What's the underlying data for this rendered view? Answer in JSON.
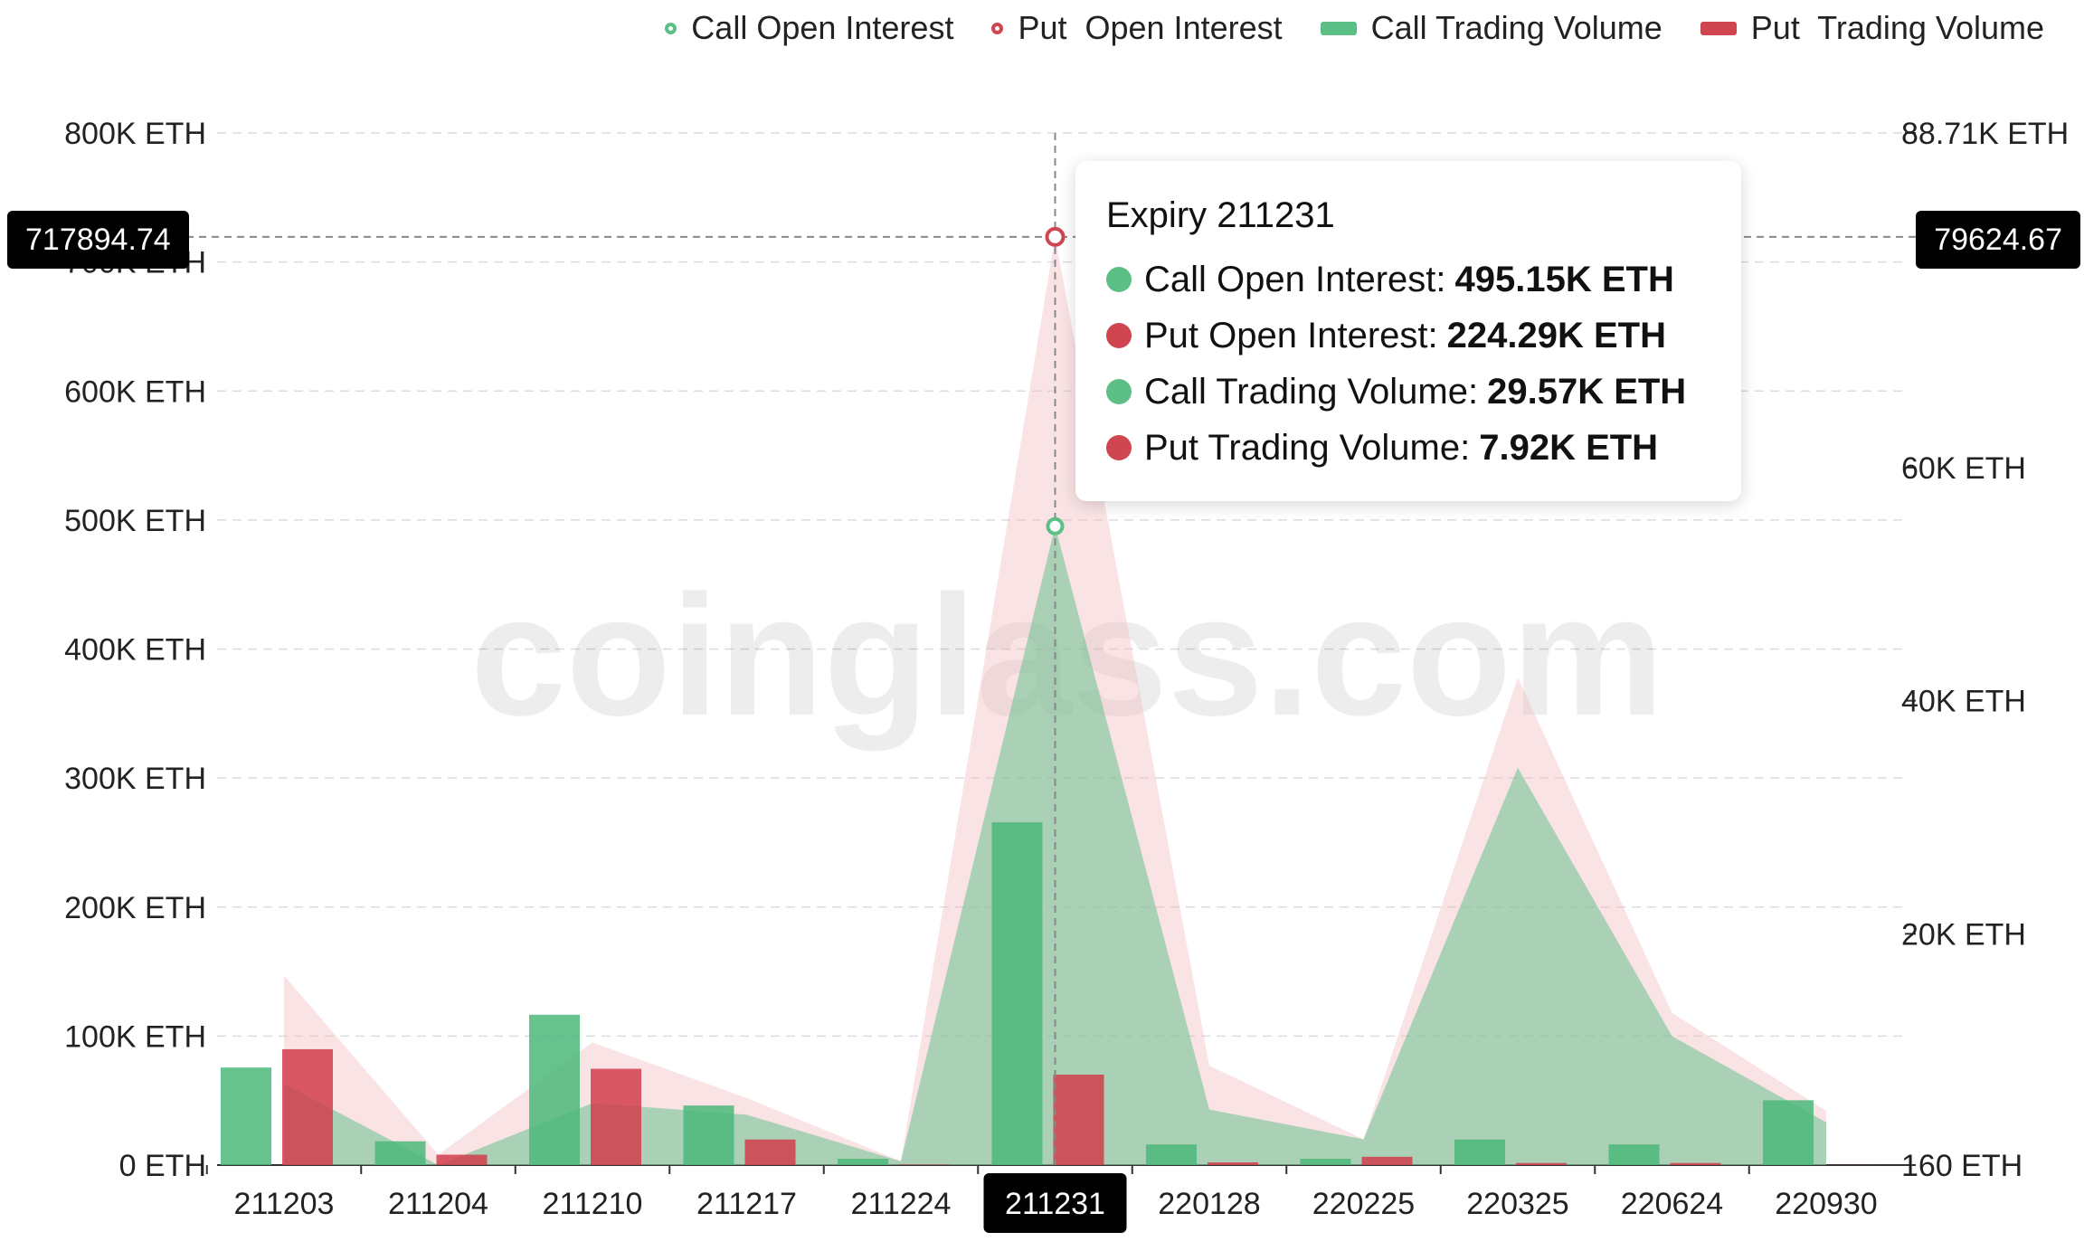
{
  "legend": {
    "items": [
      {
        "label": "Call Open Interest",
        "color": "#5cbf86",
        "kind": "ring"
      },
      {
        "label": "Put  Open Interest",
        "color": "#cf4550",
        "kind": "ring"
      },
      {
        "label": "Call Trading Volume",
        "color": "#5cbf86",
        "kind": "rect"
      },
      {
        "label": "Put  Trading Volume",
        "color": "#cf4550",
        "kind": "rect"
      }
    ]
  },
  "watermark": "coinglass.com",
  "crosshair": {
    "y_left_label": "717894.74",
    "y_right_label": "79624.67",
    "x_label": "211231"
  },
  "tooltip": {
    "title": "Expiry 211231",
    "rows": [
      {
        "label": "Call Open Interest:",
        "value": "495.15K ETH",
        "color": "#5cbf86"
      },
      {
        "label": "Put Open Interest:",
        "value": "224.29K ETH",
        "color": "#cf4550"
      },
      {
        "label": "Call Trading Volume:",
        "value": "29.57K ETH",
        "color": "#5cbf86"
      },
      {
        "label": "Put Trading Volume:",
        "value": "7.92K ETH",
        "color": "#cf4550"
      }
    ]
  },
  "chart_data": {
    "type": "bar",
    "categories": [
      "211203",
      "211204",
      "211210",
      "211217",
      "211224",
      "211231",
      "220128",
      "220225",
      "220325",
      "220624",
      "220930"
    ],
    "y_left": {
      "ticks": [
        "0 ETH",
        "100K ETH",
        "200K ETH",
        "300K ETH",
        "400K ETH",
        "500K ETH",
        "600K ETH",
        "700K ETH",
        "800K ETH"
      ],
      "tick_values": [
        0,
        100000,
        200000,
        300000,
        400000,
        500000,
        600000,
        700000,
        800000
      ],
      "range": [
        0,
        800000
      ]
    },
    "y_right": {
      "ticks": [
        "160 ETH",
        "20K ETH",
        "40K ETH",
        "60K ETH",
        "88.71K ETH"
      ],
      "tick_values": [
        160,
        20000,
        40000,
        60000,
        88710
      ],
      "range": [
        160,
        88710
      ]
    },
    "grid": true,
    "legend_position": "top-right",
    "series": [
      {
        "name": "Call Open Interest",
        "type": "area",
        "axis": "left",
        "color": "#5cbf86",
        "values": [
          63000,
          0,
          48000,
          39000,
          3000,
          495150,
          43000,
          20000,
          308000,
          100000,
          33000
        ]
      },
      {
        "name": "Put  Open Interest",
        "type": "area",
        "axis": "left",
        "color": "#cf4550",
        "values": [
          147000,
          8000,
          95000,
          52000,
          3000,
          719440,
          77000,
          20000,
          378000,
          118000,
          42000
        ]
      },
      {
        "name": "Call Trading Volume",
        "type": "bar",
        "axis": "right",
        "color": "#5cbf86",
        "values": [
          8530,
          2200,
          13060,
          5270,
          700,
          29570,
          1930,
          700,
          2350,
          1930,
          5720
        ]
      },
      {
        "name": "Put  Trading Volume",
        "type": "bar",
        "axis": "right",
        "color": "#cf4550",
        "values": [
          10100,
          1050,
          8420,
          2350,
          200,
          7920,
          390,
          870,
          340,
          340,
          170
        ]
      }
    ],
    "highlighted_category": "211231"
  }
}
